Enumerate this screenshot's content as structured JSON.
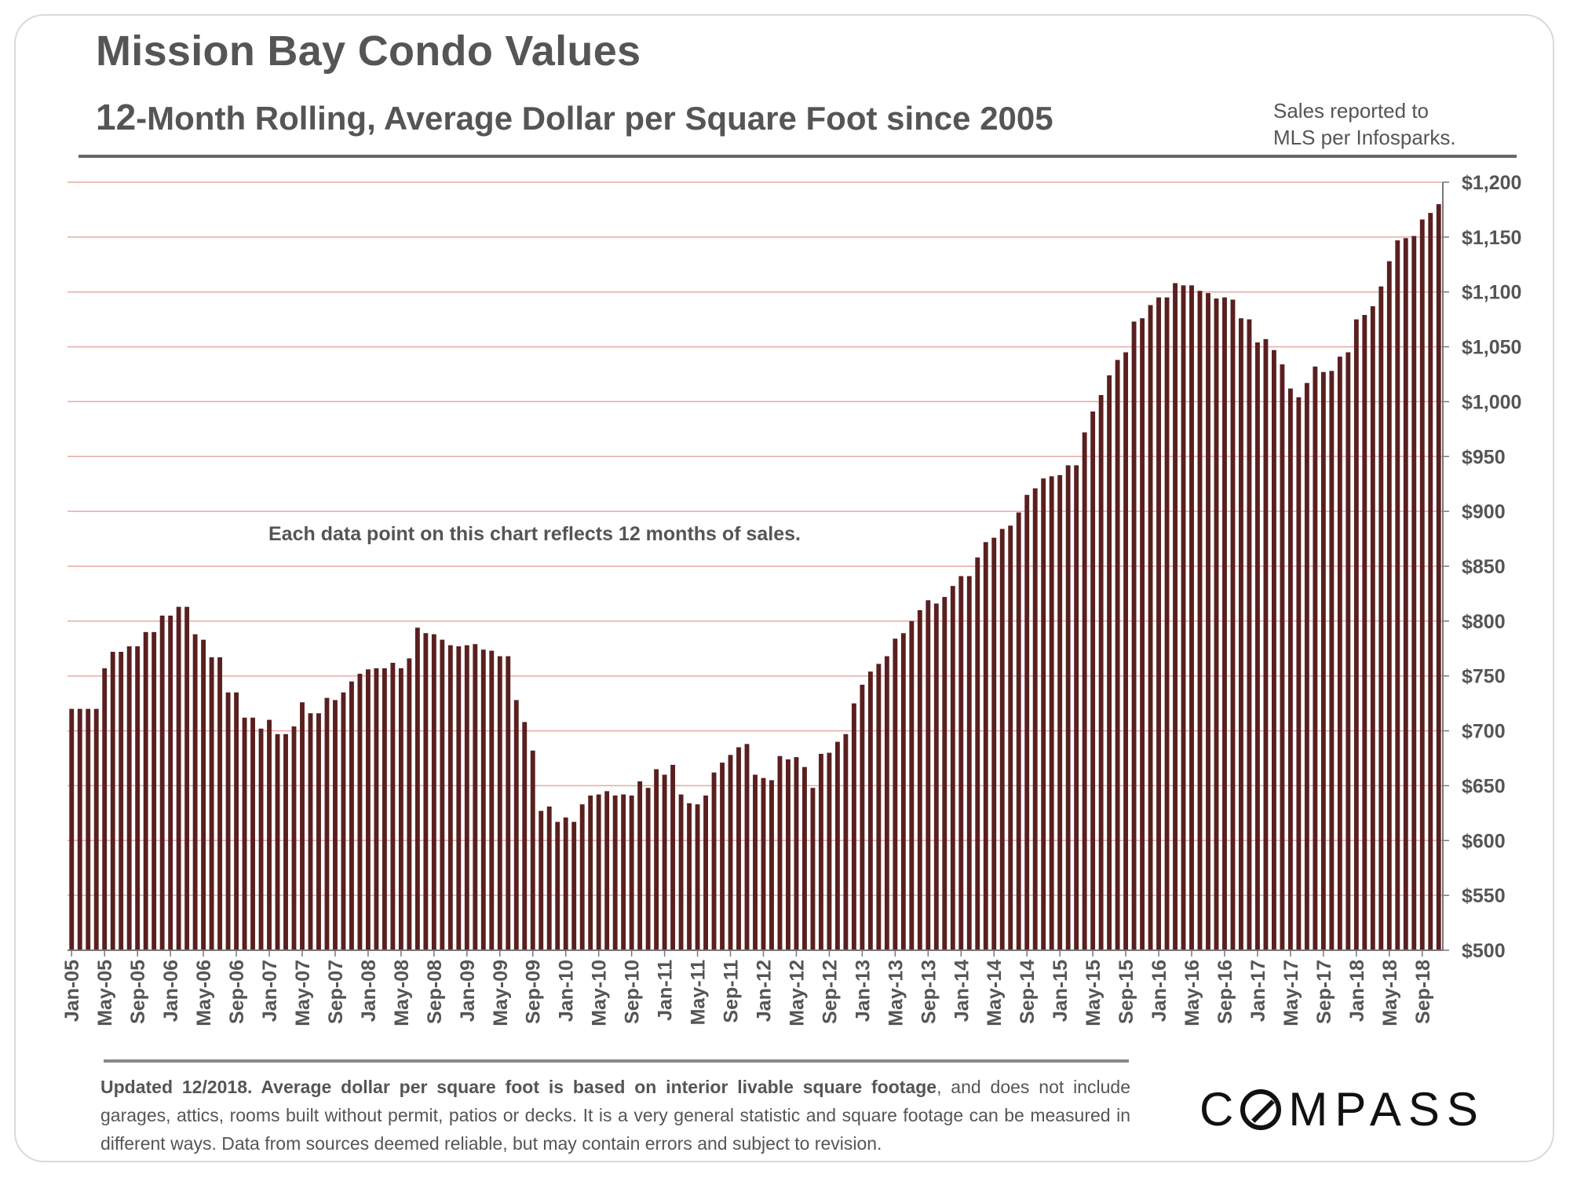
{
  "page": {
    "title": "Mission Bay Condo Values",
    "subtitle_prefix": "12",
    "subtitle_rest": "-Month Rolling, Average Dollar per Square Foot since 2005",
    "source_line1": "Sales reported to",
    "source_line2": "MLS per Infosparks.",
    "annotation": "Each data point on this chart reflects 12 months of sales.",
    "footer_bold": "Updated 12/2018. Average dollar per square foot is based on interior livable square footage",
    "footer_rest": ", and does not include garages, attics, rooms built without permit, patios or decks. It is a very general statistic and square footage can be measured in different ways. Data from sources deemed reliable, but may contain errors and subject to revision.",
    "logo_rest": "MPASS"
  },
  "colors": {
    "bar": "#5a1f1f",
    "grid": "#e8aaa6",
    "text": "#555555",
    "rule": "#666666"
  },
  "chart_data": {
    "type": "bar",
    "title": "Mission Bay Condo Values",
    "subtitle": "12-Month Rolling, Average Dollar per Square Foot since 2005",
    "xlabel": "",
    "ylabel": "",
    "ylim": [
      500,
      1200
    ],
    "yticks": [
      "$500",
      "$550",
      "$600",
      "$650",
      "$700",
      "$750",
      "$800",
      "$850",
      "$900",
      "$950",
      "$1,000",
      "$1,050",
      "$1,100",
      "$1,150",
      "$1,200"
    ],
    "xtick_labels": [
      "Jan-05",
      "May-05",
      "Sep-05",
      "Jan-06",
      "May-06",
      "Sep-06",
      "Jan-07",
      "May-07",
      "Sep-07",
      "Jan-08",
      "May-08",
      "Sep-08",
      "Jan-09",
      "May-09",
      "Sep-09",
      "Jan-10",
      "May-10",
      "Sep-10",
      "Jan-11",
      "May-11",
      "Sep-11",
      "Jan-12",
      "May-12",
      "Sep-12",
      "Jan-13",
      "May-13",
      "Sep-13",
      "Jan-14",
      "May-14",
      "Sep-14",
      "Jan-15",
      "May-15",
      "Sep-15",
      "Jan-16",
      "May-16",
      "Sep-16",
      "Jan-17",
      "May-17",
      "Sep-17",
      "Jan-18",
      "May-18",
      "Sep-18"
    ],
    "xtick_every": 4,
    "start_month": "Jan-05",
    "grid": true,
    "legend": "none",
    "values": [
      720,
      720,
      720,
      720,
      757,
      772,
      772,
      777,
      777,
      790,
      790,
      805,
      805,
      813,
      813,
      788,
      783,
      767,
      767,
      735,
      735,
      712,
      712,
      702,
      710,
      697,
      697,
      704,
      726,
      716,
      716,
      730,
      728,
      735,
      745,
      752,
      756,
      757,
      757,
      762,
      757,
      766,
      794,
      789,
      788,
      783,
      778,
      777,
      778,
      779,
      774,
      773,
      768,
      768,
      728,
      708,
      682,
      627,
      631,
      617,
      621,
      617,
      633,
      641,
      642,
      645,
      641,
      642,
      641,
      654,
      648,
      665,
      660,
      669,
      642,
      634,
      633,
      641,
      662,
      671,
      678,
      685,
      688,
      660,
      657,
      655,
      677,
      674,
      676,
      667,
      648,
      679,
      680,
      690,
      697,
      725,
      742,
      754,
      761,
      768,
      784,
      789,
      800,
      810,
      819,
      816,
      822,
      832,
      841,
      841,
      858,
      872,
      876,
      884,
      887,
      899,
      915,
      921,
      930,
      932,
      933,
      942,
      942,
      972,
      991,
      1006,
      1024,
      1038,
      1045,
      1073,
      1076,
      1088,
      1095,
      1095,
      1108,
      1106,
      1106,
      1101,
      1099,
      1094,
      1095,
      1093,
      1076,
      1075,
      1054,
      1057,
      1047,
      1034,
      1012,
      1004,
      1017,
      1032,
      1027,
      1028,
      1041,
      1045,
      1075,
      1079,
      1087,
      1105,
      1128,
      1147,
      1149,
      1151,
      1166,
      1172,
      1180
    ]
  }
}
